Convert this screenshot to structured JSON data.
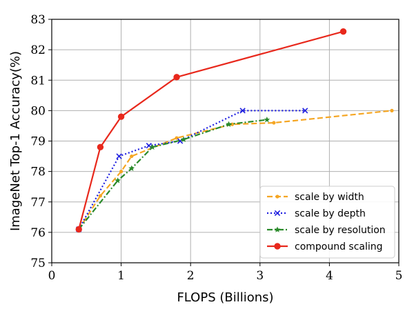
{
  "chart_data": {
    "type": "line",
    "xlabel": "FLOPS (Billions)",
    "ylabel": "ImageNet Top-1 Accuracy(%)",
    "xlim": [
      0,
      5
    ],
    "ylim": [
      75,
      83
    ],
    "xticks": [
      "0",
      "1",
      "2",
      "3",
      "4",
      "5"
    ],
    "yticks": [
      "75",
      "76",
      "77",
      "78",
      "79",
      "80",
      "81",
      "82",
      "83"
    ],
    "grid": true,
    "legend_position": "lower-right",
    "series": [
      {
        "name": "scale by width",
        "color": "#f5a623",
        "style": "dashed",
        "marker": "dot",
        "x": [
          0.39,
          0.7,
          1.0,
          1.15,
          1.8,
          2.6,
          3.2,
          4.9
        ],
        "y": [
          76.1,
          77.2,
          78.0,
          78.5,
          79.1,
          79.55,
          79.6,
          80.0
        ]
      },
      {
        "name": "scale by depth",
        "color": "#1f1fe0",
        "style": "dotted",
        "marker": "x",
        "x": [
          0.39,
          0.97,
          1.4,
          1.85,
          2.75,
          3.65
        ],
        "y": [
          76.1,
          78.5,
          78.85,
          79.0,
          80.0,
          80.0
        ]
      },
      {
        "name": "scale by resolution",
        "color": "#2a8a2a",
        "style": "dashdot",
        "marker": "star",
        "x": [
          0.39,
          0.95,
          1.15,
          1.45,
          1.9,
          2.55,
          3.1
        ],
        "y": [
          76.1,
          77.7,
          78.1,
          78.8,
          79.05,
          79.55,
          79.7
        ]
      },
      {
        "name": "compound scaling",
        "color": "#e8281c",
        "style": "solid",
        "marker": "circle",
        "x": [
          0.39,
          0.7,
          1.0,
          1.8,
          4.2
        ],
        "y": [
          76.1,
          78.8,
          79.8,
          81.1,
          82.6
        ]
      }
    ]
  }
}
